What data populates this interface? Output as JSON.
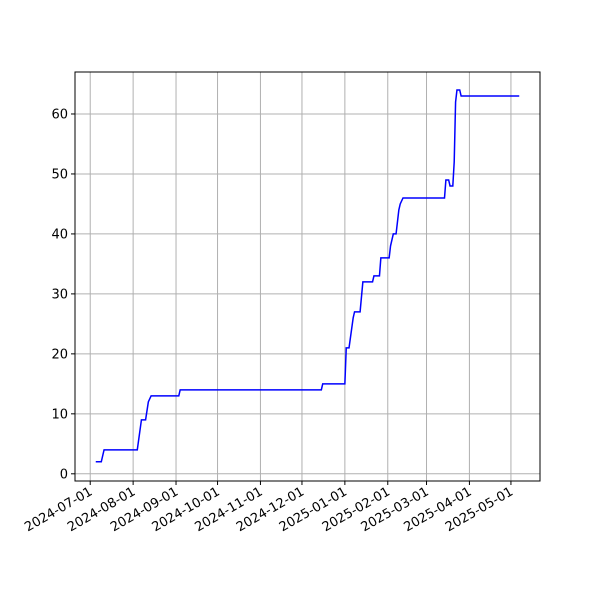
{
  "chart_data": {
    "type": "line",
    "x": [
      "2024-07-05",
      "2024-07-09",
      "2024-07-11",
      "2024-08-04",
      "2024-08-07",
      "2024-08-10",
      "2024-08-12",
      "2024-08-14",
      "2024-09-03",
      "2024-09-04",
      "2024-12-15",
      "2024-12-16",
      "2025-01-01",
      "2025-01-02",
      "2025-01-04",
      "2025-01-07",
      "2025-01-08",
      "2025-01-12",
      "2025-01-14",
      "2025-01-21",
      "2025-01-22",
      "2025-01-26",
      "2025-01-27",
      "2025-02-02",
      "2025-02-03",
      "2025-02-05",
      "2025-02-07",
      "2025-02-09",
      "2025-02-10",
      "2025-02-12",
      "2025-03-14",
      "2025-03-15",
      "2025-03-17",
      "2025-03-18",
      "2025-03-20",
      "2025-03-21",
      "2025-03-22",
      "2025-03-23",
      "2025-03-25",
      "2025-03-26",
      "2025-05-07"
    ],
    "series": [
      {
        "color": "#0000ff",
        "values": [
          2,
          2,
          4,
          4,
          9,
          9,
          12,
          13,
          13,
          14,
          14,
          15,
          15,
          21,
          21,
          26,
          27,
          27,
          32,
          32,
          33,
          33,
          36,
          36,
          38,
          40,
          40,
          44,
          45,
          46,
          46,
          49,
          49,
          48,
          48,
          52,
          62,
          64,
          64,
          63,
          63
        ]
      }
    ],
    "xlim": [
      "2024-06-20",
      "2025-05-22"
    ],
    "xticks": [
      "2024-07-01",
      "2024-08-01",
      "2024-09-01",
      "2024-10-01",
      "2024-11-01",
      "2024-12-01",
      "2025-01-01",
      "2025-02-01",
      "2025-03-01",
      "2025-04-01",
      "2025-05-01"
    ],
    "ylim": [
      -1.2,
      67
    ],
    "yticks": [
      0,
      10,
      20,
      30,
      40,
      50,
      60
    ],
    "grid": true
  }
}
